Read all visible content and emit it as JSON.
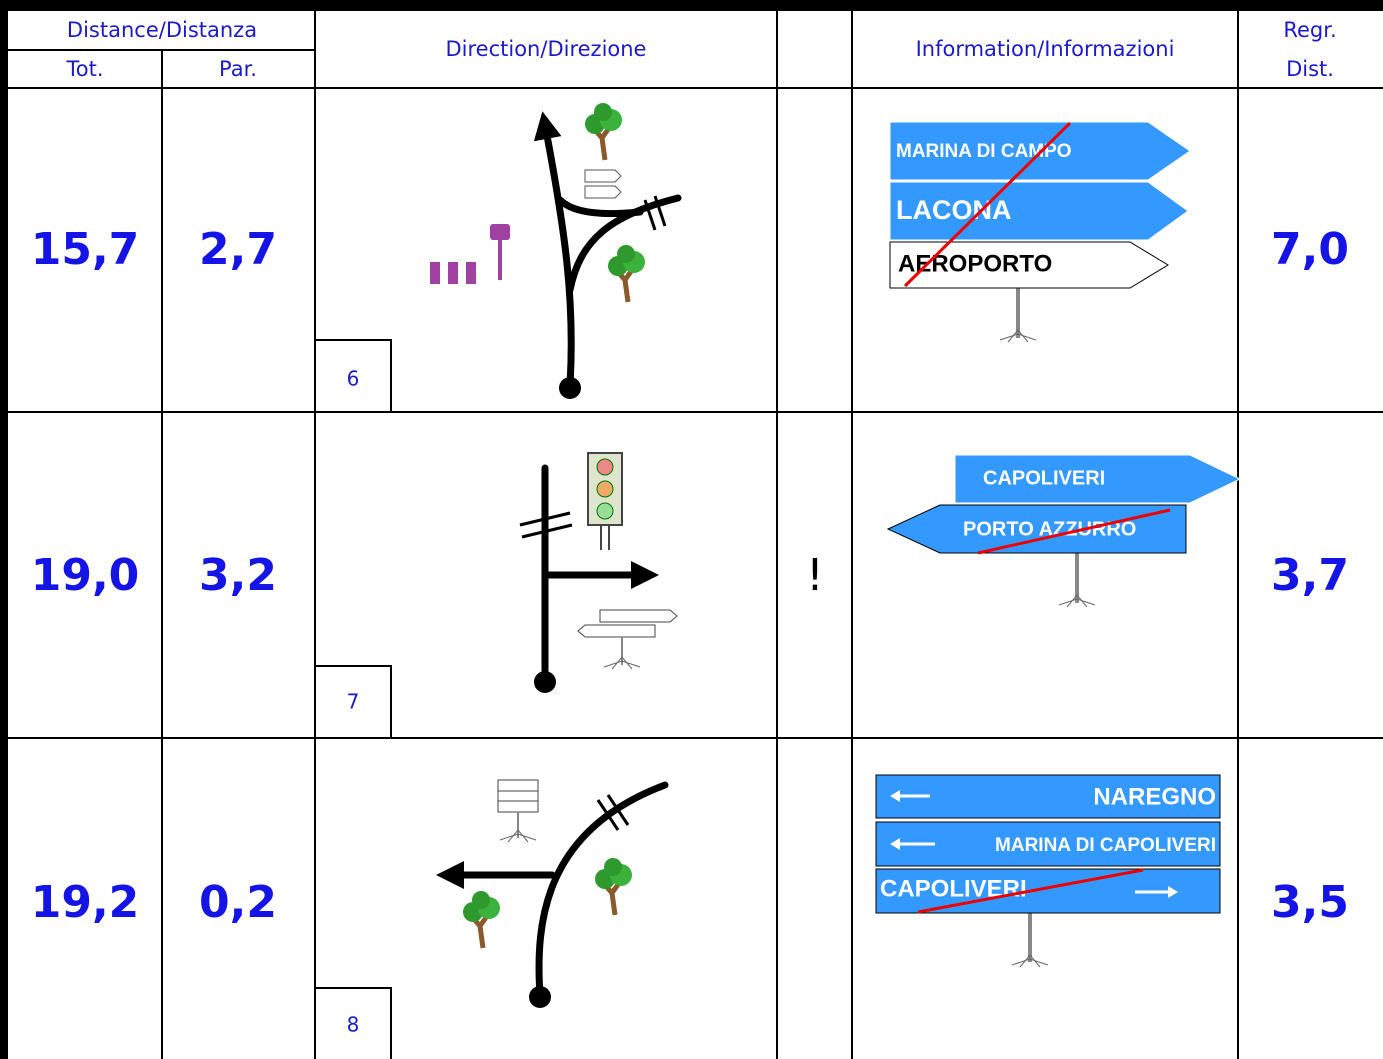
{
  "header": {
    "distance": "Distance/Distanza",
    "total": "Tot.",
    "partial": "Par.",
    "direction": "Direction/Direzione",
    "information": "Information/Informazioni",
    "regr": "Regr.",
    "dist": "Dist."
  },
  "rows": [
    {
      "total": "15,7",
      "partial": "2,7",
      "step": "6",
      "signs": [
        "MARINA DI CAMPO",
        "LACONA",
        "AEROPORTO"
      ],
      "regr_dist": "7,0"
    },
    {
      "total": "19,0",
      "partial": "3,2",
      "step": "7",
      "note": "!",
      "signs": [
        "CAPOLIVERI",
        "PORTO AZZURRO"
      ],
      "regr_dist": "3,7"
    },
    {
      "total": "19,2",
      "partial": "0,2",
      "step": "8",
      "signs": [
        "NAREGNO",
        "MARINA DI CAPOLIVERI",
        "CAPOLIVERI"
      ],
      "regr_dist": "3,5"
    }
  ]
}
